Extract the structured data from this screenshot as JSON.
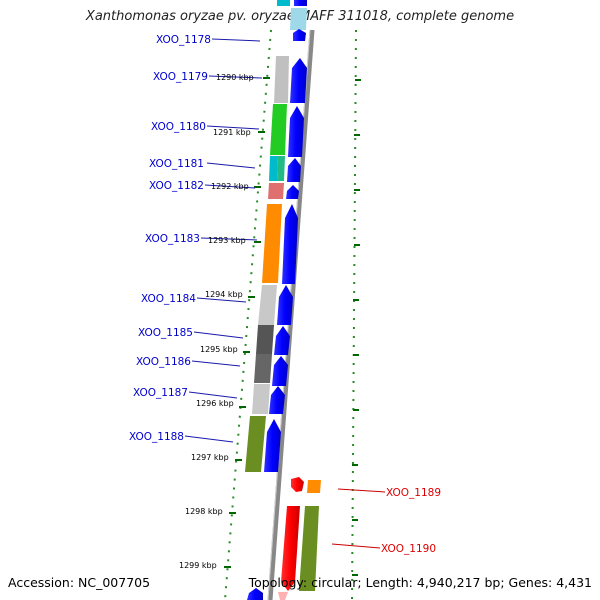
{
  "header": {
    "title": "Xanthomonas oryzae pv. oryzae MAFF 311018, complete genome"
  },
  "footer": {
    "accession": "Accession: NC_007705",
    "summary": "Topology: circular; Length: 4,940,217 bp; Genes: 4,431"
  },
  "colors": {
    "forward_strand": "#0000ff",
    "reverse_strand_gene": "#ff0000",
    "left_label": "#0000cc",
    "right_label": "#dd0000",
    "tick": "#006600",
    "backbone": "#888888"
  },
  "scale_labels": [
    "1290 kbp",
    "1291 kbp",
    "1292 kbp",
    "1293 kbp",
    "1294 kbp",
    "1295 kbp",
    "1296 kbp",
    "1297 kbp",
    "1298 kbp",
    "1299 kbp"
  ],
  "genes": [
    {
      "id": "XOO_1178",
      "side": "left",
      "cog": "cyan"
    },
    {
      "id": "XOO_1179",
      "side": "left",
      "cog": "light-gray"
    },
    {
      "id": "XOO_1180",
      "side": "left",
      "cog": "green"
    },
    {
      "id": "XOO_1181",
      "side": "left",
      "cog": "cyan-teal"
    },
    {
      "id": "XOO_1182",
      "side": "left",
      "cog": "pink"
    },
    {
      "id": "XOO_1183",
      "side": "left",
      "cog": "orange"
    },
    {
      "id": "XOO_1184",
      "side": "left",
      "cog": "light-gray"
    },
    {
      "id": "XOO_1185",
      "side": "left",
      "cog": "dark-gray"
    },
    {
      "id": "XOO_1186",
      "side": "left",
      "cog": "dark-gray"
    },
    {
      "id": "XOO_1187",
      "side": "left",
      "cog": "light-gray"
    },
    {
      "id": "XOO_1188",
      "side": "left",
      "cog": "olive"
    },
    {
      "id": "XOO_1189",
      "side": "right",
      "cog": "orange"
    },
    {
      "id": "XOO_1190",
      "side": "right",
      "cog": "olive"
    }
  ]
}
